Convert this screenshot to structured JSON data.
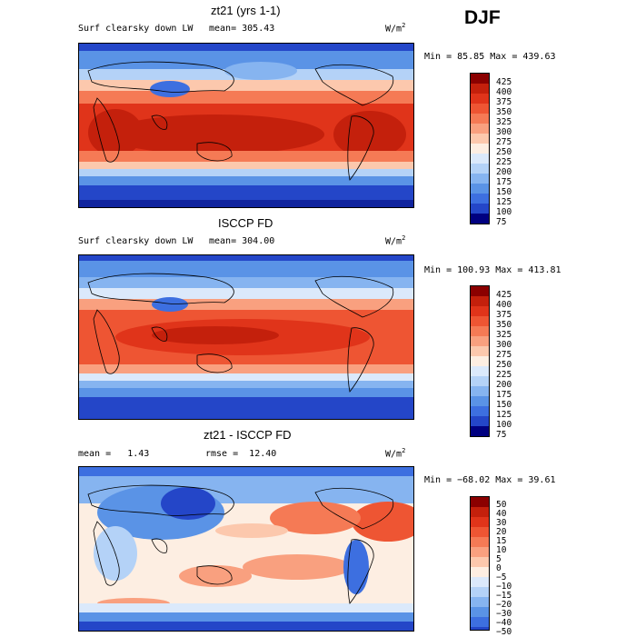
{
  "season": "DJF",
  "panels": [
    {
      "title": "zt21 (yrs 1-1)",
      "field": "Surf clearsky down LW",
      "mean_label": "mean=",
      "mean_value": "305.43",
      "units": "W/m",
      "units_sup": "2",
      "range_text": "Min =  85.85 Max = 439.63",
      "colorbar_levels": [
        "425",
        "400",
        "375",
        "350",
        "325",
        "300",
        "275",
        "250",
        "225",
        "200",
        "175",
        "150",
        "125",
        "100",
        "75"
      ]
    },
    {
      "title": "ISCCP FD",
      "field": "Surf clearsky down LW",
      "mean_label": "mean=",
      "mean_value": "304.00",
      "units": "W/m",
      "units_sup": "2",
      "range_text": "Min = 100.93 Max = 413.81",
      "colorbar_levels": [
        "425",
        "400",
        "375",
        "350",
        "325",
        "300",
        "275",
        "250",
        "225",
        "200",
        "175",
        "150",
        "125",
        "100",
        "75"
      ]
    },
    {
      "title": "zt21 - ISCCP FD",
      "mean_label": "mean =",
      "mean_value": "1.43",
      "rmse_label": "rmse =",
      "rmse_value": "12.40",
      "units": "W/m",
      "units_sup": "2",
      "range_text": "Min = −68.02 Max =  39.61",
      "colorbar_levels": [
        "50",
        "40",
        "30",
        "20",
        "15",
        "10",
        "5",
        "0",
        "−5",
        "−10",
        "−15",
        "−20",
        "−30",
        "−40",
        "−50"
      ]
    }
  ],
  "colors": {
    "scale": [
      "#8b0000",
      "#c4200c",
      "#e0341a",
      "#ee5533",
      "#f57a55",
      "#f9a07f",
      "#fcc8ad",
      "#fdeee2",
      "#dbe9fb",
      "#b4d2f7",
      "#86b4f0",
      "#5a93e6",
      "#3d6fe0",
      "#2446c8",
      "#10249e",
      "#000080"
    ]
  }
}
